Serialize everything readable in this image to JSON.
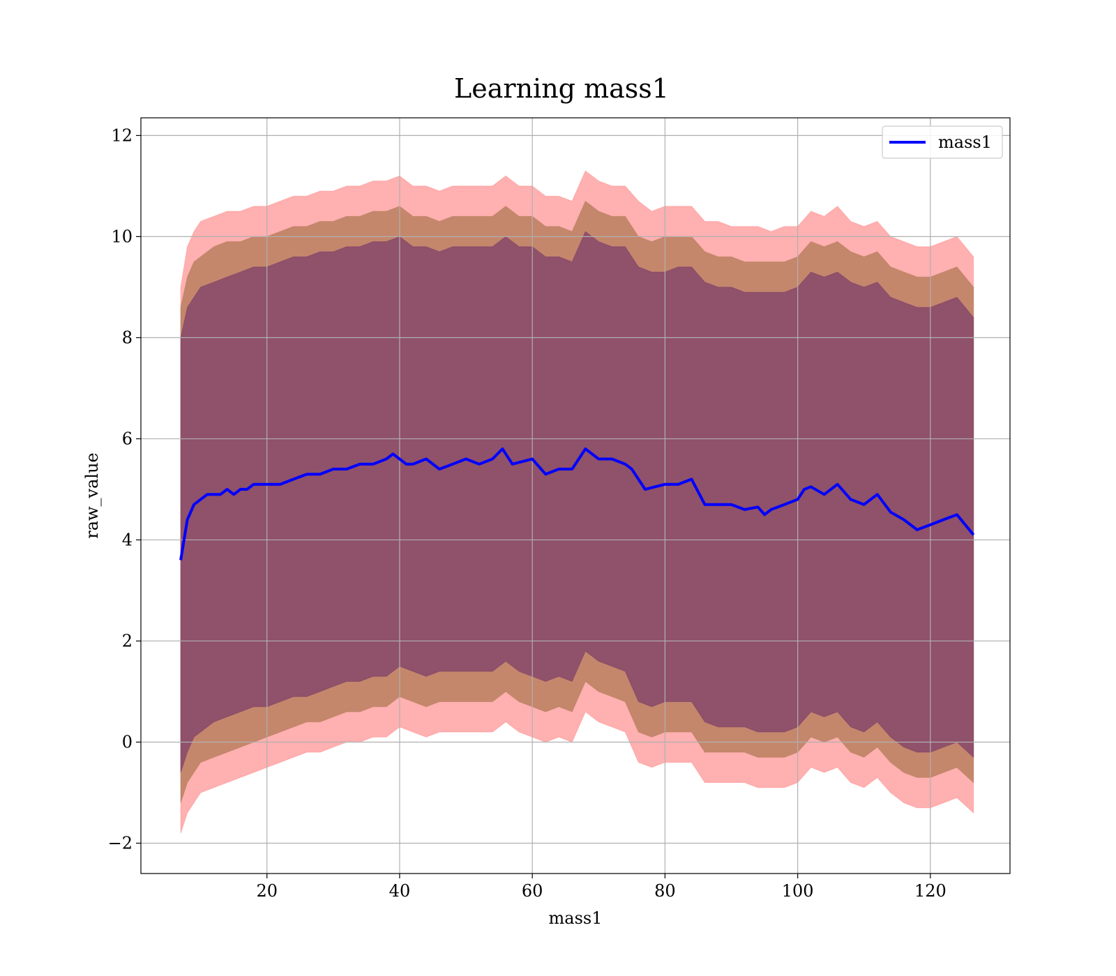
{
  "chart_data": {
    "type": "line",
    "title": "Learning mass1",
    "xlabel": "mass1",
    "ylabel": "raw_value",
    "xlim": [
      1,
      132
    ],
    "ylim": [
      -2.6,
      12.35
    ],
    "x_ticks": [
      20,
      40,
      60,
      80,
      100,
      120
    ],
    "y_ticks": [
      -2,
      0,
      2,
      4,
      6,
      8,
      10,
      12
    ],
    "x_tick_labels": [
      "20",
      "40",
      "60",
      "80",
      "100",
      "120"
    ],
    "y_tick_labels": [
      "−2",
      "0",
      "2",
      "4",
      "6",
      "8",
      "10",
      "12"
    ],
    "grid": true,
    "legend_position": "upper right",
    "legend_entries": [
      "mass1"
    ],
    "colors": {
      "line": "#0000ff",
      "band_outer": "#ff8a8a",
      "band_middle": "#b07a55",
      "band_inner": "#7a3a6a",
      "grid": "#b0b0b0",
      "axis": "#000000"
    },
    "series": [
      {
        "name": "mass1",
        "x": [
          7,
          8,
          9,
          10,
          11,
          12,
          13,
          14,
          15,
          16,
          17,
          18,
          19,
          20,
          22,
          24,
          26,
          28,
          30,
          32,
          34,
          36,
          38,
          39,
          40,
          41,
          42,
          44,
          46,
          48,
          50,
          52,
          54,
          55.5,
          57,
          60,
          62,
          64,
          66,
          68,
          70,
          72,
          74,
          75,
          77,
          80,
          82,
          84,
          86,
          88,
          90,
          92,
          94,
          95,
          96,
          98,
          100,
          101,
          102,
          104,
          106,
          108,
          110,
          112,
          114,
          116,
          118,
          120,
          122,
          124,
          126.5
        ],
        "y": [
          3.6,
          4.4,
          4.7,
          4.8,
          4.9,
          4.9,
          4.9,
          5.0,
          4.9,
          5.0,
          5.0,
          5.1,
          5.1,
          5.1,
          5.1,
          5.2,
          5.3,
          5.3,
          5.4,
          5.4,
          5.5,
          5.5,
          5.6,
          5.7,
          5.6,
          5.5,
          5.5,
          5.6,
          5.4,
          5.5,
          5.6,
          5.5,
          5.6,
          5.8,
          5.5,
          5.6,
          5.3,
          5.4,
          5.4,
          5.8,
          5.6,
          5.6,
          5.5,
          5.4,
          5.0,
          5.1,
          5.1,
          5.2,
          4.7,
          4.7,
          4.7,
          4.6,
          4.65,
          4.5,
          4.6,
          4.7,
          4.8,
          5.0,
          5.05,
          4.9,
          5.1,
          4.8,
          4.7,
          4.9,
          4.55,
          4.4,
          4.2,
          4.3,
          4.4,
          4.5,
          4.1
        ]
      },
      {
        "name": "",
        "band": "outer",
        "x": [
          7,
          8,
          9,
          10,
          12,
          14,
          16,
          18,
          20,
          22,
          24,
          26,
          28,
          30,
          32,
          34,
          36,
          38,
          40,
          42,
          44,
          46,
          48,
          50,
          52,
          54,
          56,
          58,
          60,
          62,
          64,
          66,
          68,
          70,
          72,
          74,
          76,
          78,
          80,
          82,
          84,
          86,
          88,
          90,
          92,
          94,
          96,
          98,
          100,
          102,
          104,
          106,
          108,
          110,
          112,
          114,
          116,
          118,
          120,
          122,
          124,
          126.5
        ],
        "upper": [
          9.0,
          9.8,
          10.1,
          10.3,
          10.4,
          10.5,
          10.5,
          10.6,
          10.6,
          10.7,
          10.8,
          10.8,
          10.9,
          10.9,
          11.0,
          11.0,
          11.1,
          11.1,
          11.2,
          11.0,
          11.0,
          10.9,
          11.0,
          11.0,
          11.0,
          11.0,
          11.2,
          11.0,
          11.0,
          10.8,
          10.8,
          10.7,
          11.3,
          11.1,
          11.0,
          11.0,
          10.7,
          10.5,
          10.6,
          10.6,
          10.6,
          10.3,
          10.3,
          10.2,
          10.2,
          10.2,
          10.1,
          10.2,
          10.2,
          10.5,
          10.4,
          10.6,
          10.3,
          10.2,
          10.3,
          10.0,
          9.9,
          9.8,
          9.8,
          9.9,
          10.0,
          9.6
        ],
        "lower": [
          -1.8,
          -1.4,
          -1.2,
          -1.0,
          -0.9,
          -0.8,
          -0.7,
          -0.6,
          -0.5,
          -0.4,
          -0.3,
          -0.2,
          -0.2,
          -0.1,
          0.0,
          0.0,
          0.1,
          0.1,
          0.3,
          0.2,
          0.1,
          0.2,
          0.2,
          0.2,
          0.2,
          0.2,
          0.4,
          0.2,
          0.1,
          0.0,
          0.1,
          0.0,
          0.6,
          0.4,
          0.3,
          0.2,
          -0.4,
          -0.5,
          -0.4,
          -0.4,
          -0.4,
          -0.8,
          -0.8,
          -0.8,
          -0.8,
          -0.9,
          -0.9,
          -0.9,
          -0.8,
          -0.5,
          -0.6,
          -0.5,
          -0.8,
          -0.9,
          -0.7,
          -1.0,
          -1.2,
          -1.3,
          -1.3,
          -1.2,
          -1.1,
          -1.4
        ]
      },
      {
        "name": "",
        "band": "middle",
        "x": [
          7,
          8,
          9,
          10,
          12,
          14,
          16,
          18,
          20,
          22,
          24,
          26,
          28,
          30,
          32,
          34,
          36,
          38,
          40,
          42,
          44,
          46,
          48,
          50,
          52,
          54,
          56,
          58,
          60,
          62,
          64,
          66,
          68,
          70,
          72,
          74,
          76,
          78,
          80,
          82,
          84,
          86,
          88,
          90,
          92,
          94,
          96,
          98,
          100,
          102,
          104,
          106,
          108,
          110,
          112,
          114,
          116,
          118,
          120,
          122,
          124,
          126.5
        ],
        "upper": [
          8.6,
          9.2,
          9.5,
          9.6,
          9.8,
          9.9,
          9.9,
          10.0,
          10.0,
          10.1,
          10.2,
          10.2,
          10.3,
          10.3,
          10.4,
          10.4,
          10.5,
          10.5,
          10.6,
          10.4,
          10.4,
          10.3,
          10.4,
          10.4,
          10.4,
          10.4,
          10.6,
          10.4,
          10.4,
          10.2,
          10.2,
          10.1,
          10.7,
          10.5,
          10.4,
          10.4,
          10.0,
          9.9,
          10.0,
          10.0,
          10.0,
          9.7,
          9.6,
          9.6,
          9.5,
          9.5,
          9.5,
          9.5,
          9.6,
          9.9,
          9.8,
          9.9,
          9.7,
          9.6,
          9.7,
          9.4,
          9.3,
          9.2,
          9.2,
          9.3,
          9.4,
          9.0
        ],
        "lower": [
          -1.2,
          -0.8,
          -0.6,
          -0.4,
          -0.3,
          -0.2,
          -0.1,
          0.0,
          0.1,
          0.2,
          0.3,
          0.4,
          0.4,
          0.5,
          0.6,
          0.6,
          0.7,
          0.7,
          0.9,
          0.8,
          0.7,
          0.8,
          0.8,
          0.8,
          0.8,
          0.8,
          1.0,
          0.8,
          0.7,
          0.6,
          0.7,
          0.6,
          1.2,
          1.0,
          0.9,
          0.8,
          0.2,
          0.1,
          0.2,
          0.2,
          0.2,
          -0.2,
          -0.2,
          -0.2,
          -0.2,
          -0.3,
          -0.3,
          -0.3,
          -0.2,
          0.1,
          0.0,
          0.1,
          -0.2,
          -0.3,
          -0.1,
          -0.4,
          -0.6,
          -0.7,
          -0.7,
          -0.6,
          -0.5,
          -0.8
        ]
      },
      {
        "name": "",
        "band": "inner",
        "x": [
          7,
          8,
          9,
          10,
          12,
          14,
          16,
          18,
          20,
          22,
          24,
          26,
          28,
          30,
          32,
          34,
          36,
          38,
          40,
          42,
          44,
          46,
          48,
          50,
          52,
          54,
          56,
          58,
          60,
          62,
          64,
          66,
          68,
          70,
          72,
          74,
          76,
          78,
          80,
          82,
          84,
          86,
          88,
          90,
          92,
          94,
          96,
          98,
          100,
          102,
          104,
          106,
          108,
          110,
          112,
          114,
          116,
          118,
          120,
          122,
          124,
          126.5
        ],
        "upper": [
          8.0,
          8.6,
          8.8,
          9.0,
          9.1,
          9.2,
          9.3,
          9.4,
          9.4,
          9.5,
          9.6,
          9.6,
          9.7,
          9.7,
          9.8,
          9.8,
          9.9,
          9.9,
          10.0,
          9.8,
          9.8,
          9.7,
          9.8,
          9.8,
          9.8,
          9.8,
          10.0,
          9.8,
          9.8,
          9.6,
          9.6,
          9.5,
          10.1,
          9.9,
          9.8,
          9.8,
          9.4,
          9.3,
          9.3,
          9.4,
          9.4,
          9.1,
          9.0,
          9.0,
          8.9,
          8.9,
          8.9,
          8.9,
          9.0,
          9.3,
          9.2,
          9.3,
          9.1,
          9.0,
          9.1,
          8.8,
          8.7,
          8.6,
          8.6,
          8.7,
          8.8,
          8.4
        ],
        "lower": [
          -0.6,
          -0.2,
          0.1,
          0.2,
          0.4,
          0.5,
          0.6,
          0.7,
          0.7,
          0.8,
          0.9,
          0.9,
          1.0,
          1.1,
          1.2,
          1.2,
          1.3,
          1.3,
          1.5,
          1.4,
          1.3,
          1.4,
          1.4,
          1.4,
          1.4,
          1.4,
          1.6,
          1.4,
          1.3,
          1.2,
          1.3,
          1.2,
          1.8,
          1.6,
          1.5,
          1.4,
          0.8,
          0.7,
          0.8,
          0.8,
          0.8,
          0.4,
          0.3,
          0.3,
          0.3,
          0.2,
          0.2,
          0.2,
          0.3,
          0.6,
          0.5,
          0.6,
          0.3,
          0.2,
          0.4,
          0.1,
          -0.1,
          -0.2,
          -0.2,
          -0.1,
          0.0,
          -0.3
        ]
      }
    ]
  }
}
